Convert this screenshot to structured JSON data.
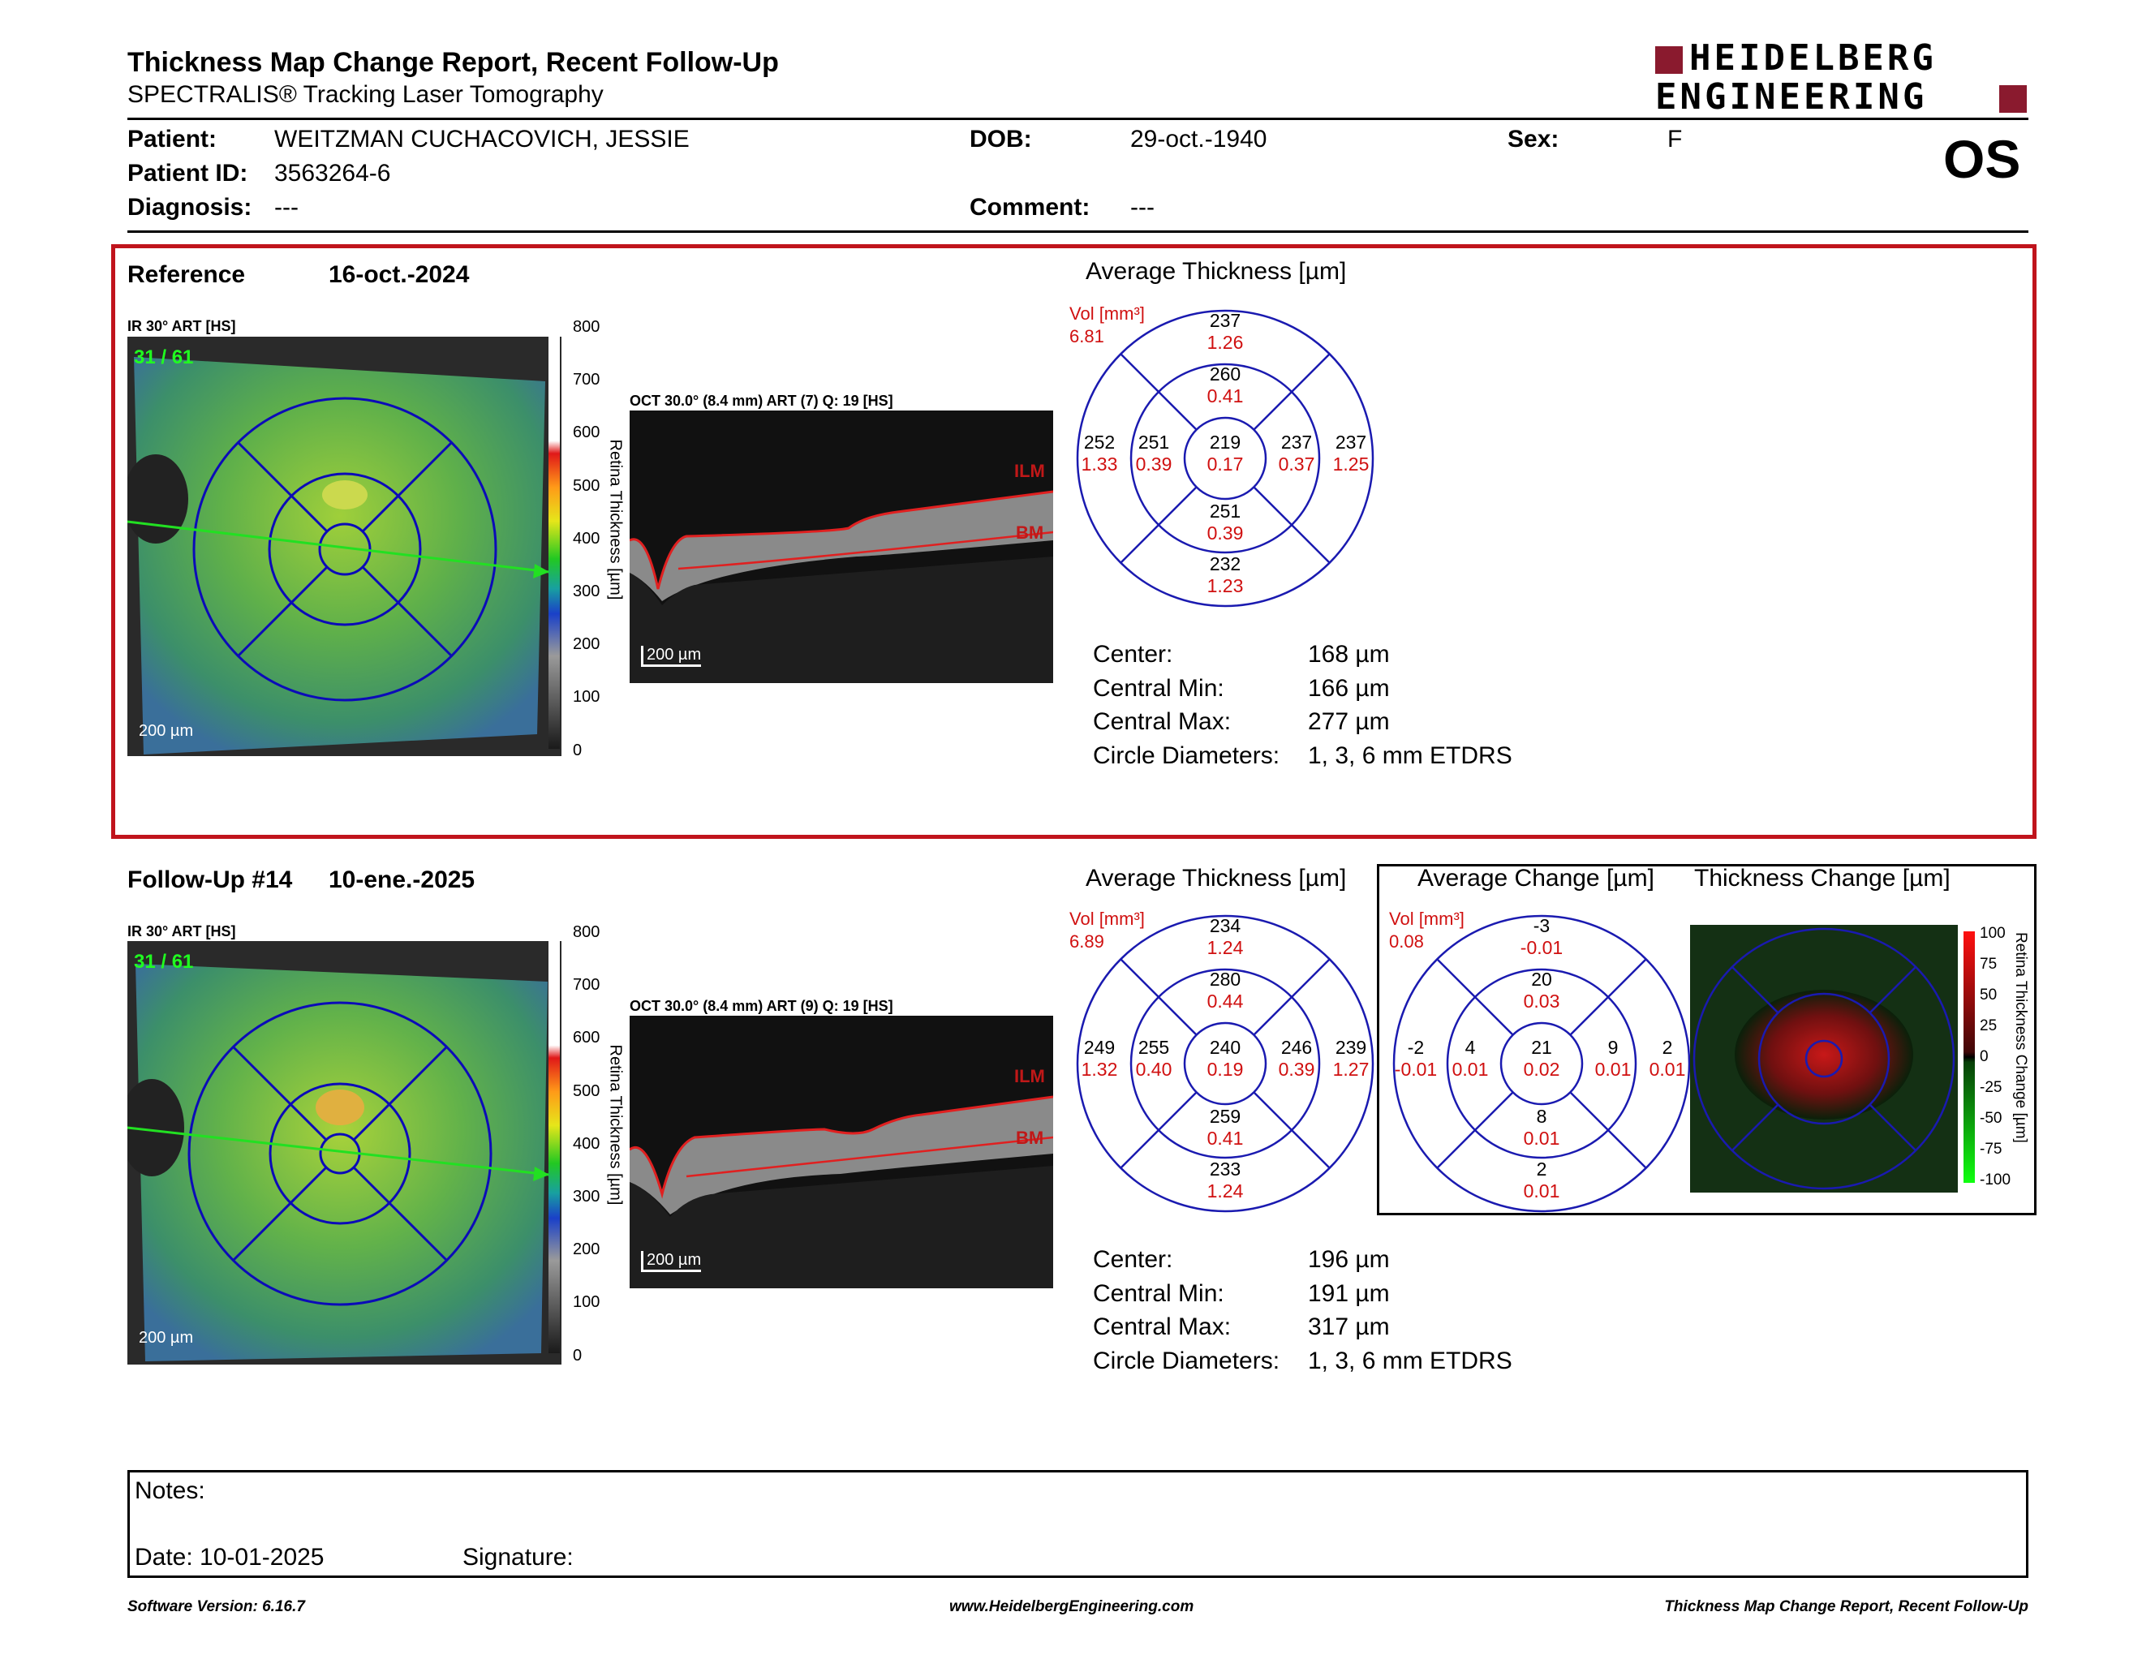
{
  "report": {
    "title": "Thickness Map Change Report, Recent Follow-Up",
    "subtitle": "SPECTRALIS® Tracking Laser Tomography",
    "eye": "OS",
    "logo_line1": "HEIDELBERG",
    "logo_line2": "ENGINEERING"
  },
  "patient": {
    "patient_label": "Patient:",
    "patient_value": "WEITZMAN CUCHACOVICH, JESSIE",
    "id_label": "Patient ID:",
    "id_value": "3563264-6",
    "diag_label": "Diagnosis:",
    "diag_value": "---",
    "dob_label": "DOB:",
    "dob_value": "29-oct.-1940",
    "comment_label": "Comment:",
    "comment_value": "---",
    "sex_label": "Sex:",
    "sex_value": "F"
  },
  "reference": {
    "label": "Reference",
    "date": "16-oct.-2024",
    "ir_label": "IR 30° ART [HS]",
    "frame": "31 / 61",
    "scale": "200 µm",
    "oct_label": "OCT 30.0° (8.4 mm) ART (7) Q: 19 [HS]",
    "oct_scale": "200 µm",
    "ilm": "ILM",
    "bm": "BM",
    "colorbar_ticks": [
      "800",
      "700",
      "600",
      "500",
      "400",
      "300",
      "200",
      "100",
      "0"
    ],
    "colorbar_title": "Retina Thickness [µm]",
    "avg_title": "Average Thickness [µm]",
    "vol_label": "Vol [mm³]",
    "vol_total": "6.81",
    "etdrs": {
      "outer_sup": [
        "237",
        "1.26"
      ],
      "inner_sup": [
        "260",
        "0.41"
      ],
      "outer_temp": [
        "252",
        "1.33"
      ],
      "inner_temp": [
        "251",
        "0.39"
      ],
      "center": [
        "219",
        "0.17"
      ],
      "inner_nas": [
        "237",
        "0.37"
      ],
      "outer_nas": [
        "237",
        "1.25"
      ],
      "inner_inf": [
        "251",
        "0.39"
      ],
      "outer_inf": [
        "232",
        "1.23"
      ]
    },
    "stats": [
      {
        "k": "Center:",
        "v": "168 µm"
      },
      {
        "k": "Central Min:",
        "v": "166 µm"
      },
      {
        "k": "Central Max:",
        "v": "277 µm"
      },
      {
        "k": "Circle Diameters:",
        "v": "1, 3, 6 mm ETDRS"
      }
    ]
  },
  "followup": {
    "label": "Follow-Up #14",
    "date": "10-ene.-2025",
    "ir_label": "IR 30° ART [HS]",
    "frame": "31 / 61",
    "scale": "200 µm",
    "oct_label": "OCT 30.0° (8.4 mm) ART (9) Q: 19 [HS]",
    "oct_scale": "200 µm",
    "ilm": "ILM",
    "bm": "BM",
    "colorbar_ticks": [
      "800",
      "700",
      "600",
      "500",
      "400",
      "300",
      "200",
      "100",
      "0"
    ],
    "colorbar_title": "Retina Thickness [µm]",
    "avg_title": "Average Thickness [µm]",
    "vol_label": "Vol [mm³]",
    "vol_total": "6.89",
    "etdrs": {
      "outer_sup": [
        "234",
        "1.24"
      ],
      "inner_sup": [
        "280",
        "0.44"
      ],
      "outer_temp": [
        "249",
        "1.32"
      ],
      "inner_temp": [
        "255",
        "0.40"
      ],
      "center": [
        "240",
        "0.19"
      ],
      "inner_nas": [
        "246",
        "0.39"
      ],
      "outer_nas": [
        "239",
        "1.27"
      ],
      "inner_inf": [
        "259",
        "0.41"
      ],
      "outer_inf": [
        "233",
        "1.24"
      ]
    },
    "stats": [
      {
        "k": "Center:",
        "v": "196 µm"
      },
      {
        "k": "Central Min:",
        "v": "191 µm"
      },
      {
        "k": "Central Max:",
        "v": "317 µm"
      },
      {
        "k": "Circle Diameters:",
        "v": "1, 3, 6 mm ETDRS"
      }
    ]
  },
  "change": {
    "avg_title": "Average Change [µm]",
    "map_title": "Thickness Change [µm]",
    "vol_label": "Vol [mm³]",
    "vol_total": "0.08",
    "etdrs": {
      "outer_sup": [
        "-3",
        "-0.01"
      ],
      "inner_sup": [
        "20",
        "0.03"
      ],
      "outer_temp": [
        "-2",
        "-0.01"
      ],
      "inner_temp": [
        "4",
        "0.01"
      ],
      "center": [
        "21",
        "0.02"
      ],
      "inner_nas": [
        "9",
        "0.01"
      ],
      "outer_nas": [
        "2",
        "0.01"
      ],
      "inner_inf": [
        "8",
        "0.01"
      ],
      "outer_inf": [
        "2",
        "0.01"
      ]
    },
    "colorbar_ticks": [
      "100",
      "75",
      "50",
      "25",
      "0",
      "-25",
      "-50",
      "-75",
      "-100"
    ],
    "colorbar_title": "Retina Thickness Change [µm]"
  },
  "notes": {
    "notes_label": "Notes:",
    "date_label": "Date: 10-01-2025",
    "signature_label": "Signature:"
  },
  "footer": {
    "software": "Software Version: 6.16.7",
    "website": "www.HeidelbergEngineering.com",
    "report_name": "Thickness Map Change Report, Recent Follow-Up"
  },
  "colors": {
    "accent_red": "#c0141c",
    "logo_red": "#8a1a2e",
    "etdrs_blue": "#1a1ab0",
    "value_red": "#d01010"
  }
}
